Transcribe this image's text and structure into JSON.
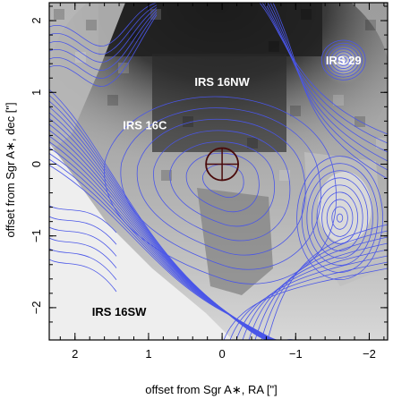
{
  "figure": {
    "xlabel": "offset from Sgr A∗, RA [\"]",
    "ylabel": "offset from Sgr A∗, dec [\"]",
    "x_ticks": [
      {
        "value": 2,
        "label": "2"
      },
      {
        "value": 1,
        "label": "1"
      },
      {
        "value": 0,
        "label": "0"
      },
      {
        "value": -1,
        "label": "−1"
      },
      {
        "value": -2,
        "label": "−2"
      }
    ],
    "y_ticks": [
      {
        "value": 2,
        "label": "2"
      },
      {
        "value": 1,
        "label": "1"
      },
      {
        "value": 0,
        "label": "0"
      },
      {
        "value": -1,
        "label": "−1"
      },
      {
        "value": -2,
        "label": "−2"
      }
    ],
    "xlim": [
      2.35,
      -2.25
    ],
    "ylim": [
      -2.45,
      2.25
    ],
    "sources": [
      {
        "name": "IRS 29",
        "ra": -1.65,
        "dec": 1.45
      },
      {
        "name": "IRS 16NW",
        "ra": 0.0,
        "dec": 1.15
      },
      {
        "name": "IRS 16C",
        "ra": 1.05,
        "dec": 0.55
      },
      {
        "name": "IRS 16SW",
        "ra": 1.4,
        "dec": -2.05
      }
    ],
    "sgra_marker": {
      "ra": 0.0,
      "dec": 0.0
    },
    "colors": {
      "contour": "#4a56e8",
      "marker": "#4a0a0a",
      "label_on_dark": "#ffffff",
      "label_on_light": "#000000"
    }
  }
}
